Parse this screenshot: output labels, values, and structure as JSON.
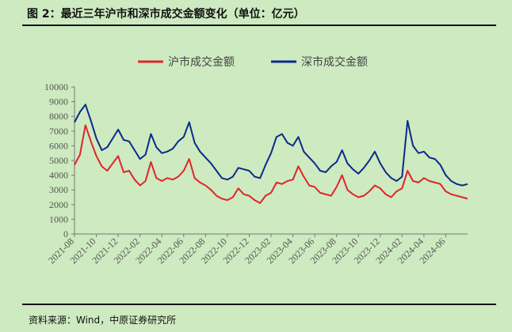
{
  "header": {
    "title": "图 2：最近三年沪市和深市成交金额变化（单位：亿元）"
  },
  "footer": {
    "source": "资料来源：Wind，中原证券研究所"
  },
  "colors": {
    "background": "#cdeac0",
    "series_sh": "#e0242b",
    "series_sz": "#0b2a8a"
  },
  "chart_data": {
    "type": "line",
    "title": "最近三年沪市和深市成交金额变化（单位：亿元）",
    "xlabel": "",
    "ylabel": "",
    "ylim": [
      0,
      10000
    ],
    "yticks": [
      0,
      1000,
      2000,
      3000,
      4000,
      5000,
      6000,
      7000,
      8000,
      9000,
      10000
    ],
    "xlim": [
      "2021-08",
      "2024-08"
    ],
    "xticks": [
      "2021-08",
      "2021-10",
      "2021-12",
      "2022-02",
      "2022-04",
      "2022-06",
      "2022-08",
      "2022-10",
      "2022-12",
      "2023-02",
      "2023-04",
      "2023-06",
      "2023-08",
      "2023-10",
      "2023-12",
      "2024-02",
      "2024-04",
      "2024-06"
    ],
    "grid": false,
    "legend_position": "top",
    "series": [
      {
        "name": "沪市成交金额",
        "color": "#e0242b",
        "x": [
          "2021-08",
          "2021-08",
          "2021-09",
          "2021-09",
          "2021-10",
          "2021-10",
          "2021-11",
          "2021-11",
          "2021-12",
          "2021-12",
          "2022-01",
          "2022-01",
          "2022-02",
          "2022-02",
          "2022-03",
          "2022-03",
          "2022-04",
          "2022-04",
          "2022-05",
          "2022-05",
          "2022-06",
          "2022-06",
          "2022-07",
          "2022-07",
          "2022-08",
          "2022-08",
          "2022-09",
          "2022-09",
          "2022-10",
          "2022-10",
          "2022-11",
          "2022-11",
          "2022-12",
          "2022-12",
          "2023-01",
          "2023-01",
          "2023-02",
          "2023-02",
          "2023-03",
          "2023-03",
          "2023-04",
          "2023-04",
          "2023-05",
          "2023-05",
          "2023-06",
          "2023-06",
          "2023-07",
          "2023-07",
          "2023-08",
          "2023-08",
          "2023-09",
          "2023-09",
          "2023-10",
          "2023-10",
          "2023-11",
          "2023-11",
          "2023-12",
          "2023-12",
          "2024-01",
          "2024-01",
          "2024-02",
          "2024-02",
          "2024-03",
          "2024-03",
          "2024-04",
          "2024-04",
          "2024-05",
          "2024-05",
          "2024-06",
          "2024-06",
          "2024-07",
          "2024-07",
          "2024-08"
        ],
        "values": [
          4700,
          5400,
          7400,
          6300,
          5300,
          4600,
          4300,
          4800,
          5300,
          4200,
          4300,
          3700,
          3300,
          3600,
          4900,
          3800,
          3600,
          3800,
          3700,
          3900,
          4300,
          5100,
          3800,
          3500,
          3300,
          3000,
          2600,
          2400,
          2300,
          2500,
          3100,
          2700,
          2600,
          2300,
          2100,
          2600,
          2800,
          3500,
          3400,
          3600,
          3700,
          4600,
          3900,
          3300,
          3200,
          2800,
          2700,
          2600,
          3200,
          4000,
          3000,
          2700,
          2500,
          2600,
          2900,
          3300,
          3100,
          2700,
          2500,
          2900,
          3100,
          4300,
          3600,
          3500,
          3800,
          3600,
          3500,
          3400,
          2900,
          2700,
          2600,
          2500,
          2400
        ]
      },
      {
        "name": "深市成交金额",
        "color": "#0b2a8a",
        "x": [
          "2021-08",
          "2021-08",
          "2021-09",
          "2021-09",
          "2021-10",
          "2021-10",
          "2021-11",
          "2021-11",
          "2021-12",
          "2021-12",
          "2022-01",
          "2022-01",
          "2022-02",
          "2022-02",
          "2022-03",
          "2022-03",
          "2022-04",
          "2022-04",
          "2022-05",
          "2022-05",
          "2022-06",
          "2022-06",
          "2022-07",
          "2022-07",
          "2022-08",
          "2022-08",
          "2022-09",
          "2022-09",
          "2022-10",
          "2022-10",
          "2022-11",
          "2022-11",
          "2022-12",
          "2022-12",
          "2023-01",
          "2023-01",
          "2023-02",
          "2023-02",
          "2023-03",
          "2023-03",
          "2023-04",
          "2023-04",
          "2023-05",
          "2023-05",
          "2023-06",
          "2023-06",
          "2023-07",
          "2023-07",
          "2023-08",
          "2023-08",
          "2023-09",
          "2023-09",
          "2023-10",
          "2023-10",
          "2023-11",
          "2023-11",
          "2023-12",
          "2023-12",
          "2024-01",
          "2024-01",
          "2024-02",
          "2024-02",
          "2024-03",
          "2024-03",
          "2024-04",
          "2024-04",
          "2024-05",
          "2024-05",
          "2024-06",
          "2024-06",
          "2024-07",
          "2024-07",
          "2024-08"
        ],
        "values": [
          7600,
          8300,
          8800,
          7700,
          6500,
          5700,
          5900,
          6500,
          7100,
          6400,
          6300,
          5700,
          5100,
          5400,
          6800,
          5900,
          5500,
          5600,
          5800,
          6300,
          6600,
          7600,
          6200,
          5600,
          5200,
          4800,
          4300,
          3800,
          3700,
          3900,
          4500,
          4400,
          4300,
          3900,
          3800,
          4700,
          5500,
          6600,
          6800,
          6200,
          6000,
          6600,
          5600,
          5200,
          4800,
          4300,
          4200,
          4600,
          4900,
          5700,
          4800,
          4400,
          4100,
          4500,
          5000,
          5600,
          4800,
          4200,
          3800,
          3600,
          3900,
          7700,
          6000,
          5500,
          5600,
          5200,
          5100,
          4700,
          4000,
          3600,
          3400,
          3300,
          3400
        ]
      }
    ]
  }
}
